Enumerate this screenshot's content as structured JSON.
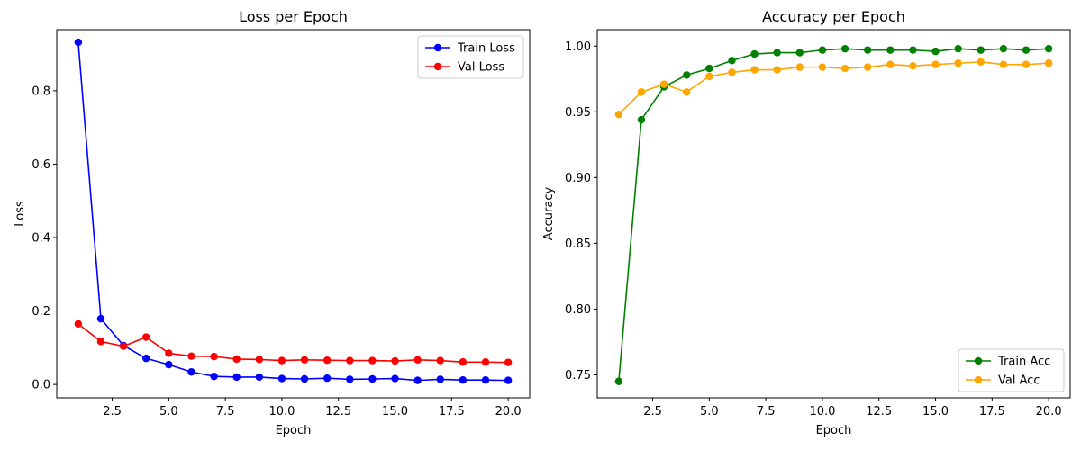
{
  "chart_data": [
    {
      "type": "line",
      "title": "Loss per Epoch",
      "xlabel": "Epoch",
      "ylabel": "Loss",
      "xlim": [
        0.05,
        20.95
      ],
      "ylim": [
        -0.0365,
        0.9665
      ],
      "xticks": [
        2.5,
        5.0,
        7.5,
        10.0,
        12.5,
        15.0,
        17.5,
        20.0
      ],
      "xtick_labels": [
        "2.5",
        "5.0",
        "7.5",
        "10.0",
        "12.5",
        "15.0",
        "17.5",
        "20.0"
      ],
      "yticks": [
        0.0,
        0.2,
        0.4,
        0.6,
        0.8
      ],
      "ytick_labels": [
        "0.0",
        "0.2",
        "0.4",
        "0.6",
        "0.8"
      ],
      "grid": false,
      "legend_position": "upper right",
      "x": [
        1,
        2,
        3,
        4,
        5,
        6,
        7,
        8,
        9,
        10,
        11,
        12,
        13,
        14,
        15,
        16,
        17,
        18,
        19,
        20
      ],
      "series": [
        {
          "name": "Train Loss",
          "color": "#0000ff",
          "values": [
            0.932,
            0.179,
            0.106,
            0.071,
            0.054,
            0.034,
            0.022,
            0.02,
            0.02,
            0.016,
            0.015,
            0.017,
            0.014,
            0.015,
            0.016,
            0.011,
            0.014,
            0.012,
            0.012,
            0.011
          ]
        },
        {
          "name": "Val Loss",
          "color": "#ff0000",
          "values": [
            0.165,
            0.117,
            0.104,
            0.129,
            0.085,
            0.077,
            0.076,
            0.069,
            0.068,
            0.065,
            0.067,
            0.066,
            0.065,
            0.065,
            0.064,
            0.067,
            0.065,
            0.061,
            0.061,
            0.06
          ]
        }
      ]
    },
    {
      "type": "line",
      "title": "Accuracy per Epoch",
      "xlabel": "Epoch",
      "ylabel": "Accuracy",
      "xlim": [
        0.05,
        20.95
      ],
      "ylim": [
        0.7325,
        1.0125
      ],
      "xticks": [
        2.5,
        5.0,
        7.5,
        10.0,
        12.5,
        15.0,
        17.5,
        20.0
      ],
      "xtick_labels": [
        "2.5",
        "5.0",
        "7.5",
        "10.0",
        "12.5",
        "15.0",
        "17.5",
        "20.0"
      ],
      "yticks": [
        0.75,
        0.8,
        0.85,
        0.9,
        0.95,
        1.0
      ],
      "ytick_labels": [
        "0.75",
        "0.80",
        "0.85",
        "0.90",
        "0.95",
        "1.00"
      ],
      "grid": false,
      "legend_position": "lower right",
      "x": [
        1,
        2,
        3,
        4,
        5,
        6,
        7,
        8,
        9,
        10,
        11,
        12,
        13,
        14,
        15,
        16,
        17,
        18,
        19,
        20
      ],
      "series": [
        {
          "name": "Train Acc",
          "color": "#008000",
          "values": [
            0.745,
            0.944,
            0.969,
            0.978,
            0.983,
            0.989,
            0.994,
            0.995,
            0.995,
            0.997,
            0.998,
            0.997,
            0.997,
            0.997,
            0.996,
            0.998,
            0.997,
            0.998,
            0.997,
            0.998
          ]
        },
        {
          "name": "Val Acc",
          "color": "#ffa500",
          "values": [
            0.948,
            0.965,
            0.971,
            0.965,
            0.977,
            0.98,
            0.982,
            0.982,
            0.984,
            0.984,
            0.983,
            0.984,
            0.986,
            0.985,
            0.986,
            0.987,
            0.988,
            0.986,
            0.986,
            0.987
          ]
        }
      ]
    }
  ]
}
